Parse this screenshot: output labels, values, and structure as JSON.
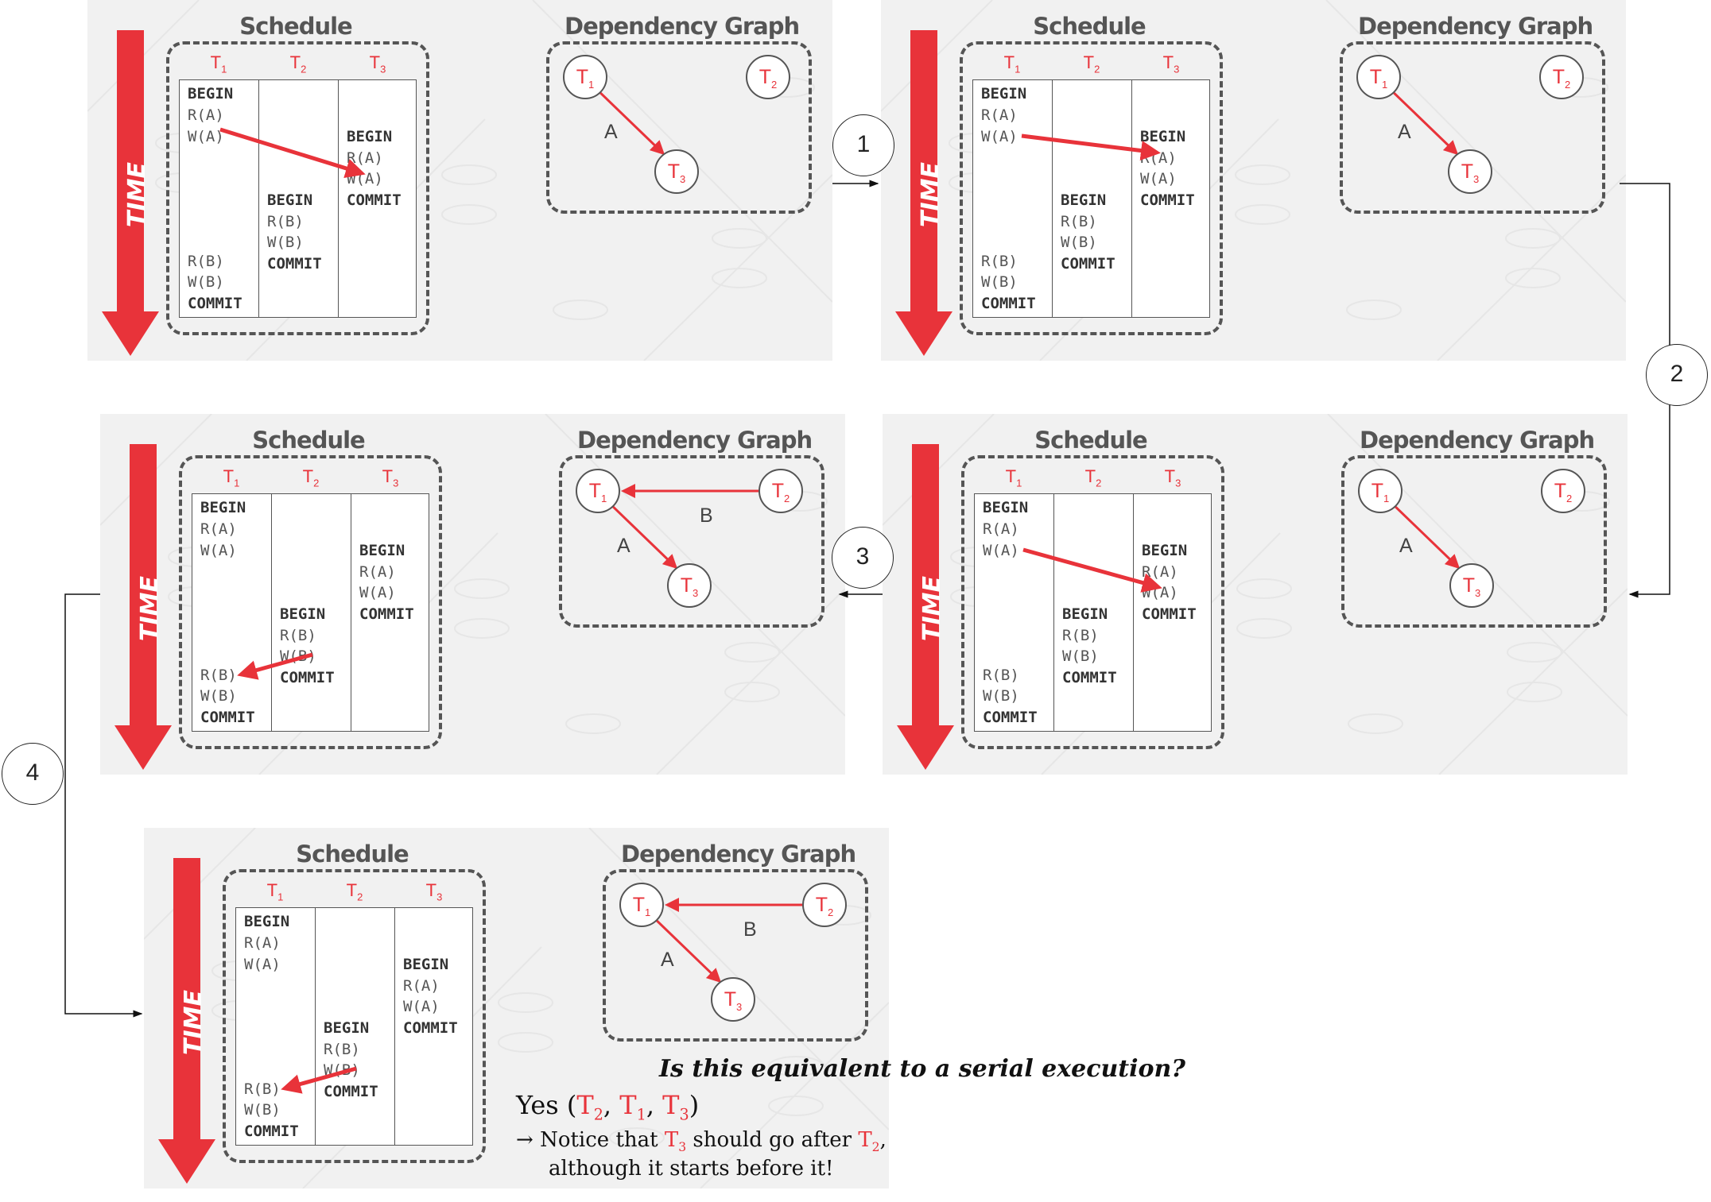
{
  "panels": [
    {
      "schedule_title": "Schedule",
      "graph_title": "Dependency Graph",
      "time_label": "TIME",
      "edges": [
        [
          "A",
          "t1-t3"
        ]
      ]
    },
    {
      "schedule_title": "Schedule",
      "graph_title": "Dependency Graph",
      "time_label": "TIME",
      "edges": [
        [
          "A",
          "t1-t3"
        ]
      ]
    },
    {
      "schedule_title": "Schedule",
      "graph_title": "Dependency Graph",
      "time_label": "TIME",
      "edges": [
        [
          "A",
          "t1-t3"
        ],
        [
          "B",
          "t2-t1"
        ]
      ]
    },
    {
      "schedule_title": "Schedule",
      "graph_title": "Dependency Graph",
      "time_label": "TIME",
      "edges": [
        [
          "A",
          "t1-t3"
        ]
      ]
    },
    {
      "schedule_title": "Schedule",
      "graph_title": "Dependency Graph",
      "time_label": "TIME",
      "edges": [
        [
          "A",
          "t1-t3"
        ],
        [
          "B",
          "t2-t1"
        ]
      ]
    }
  ],
  "transactions": {
    "t": "T",
    "s1": "1",
    "s2": "2",
    "s3": "3"
  },
  "schedule": {
    "begin": "BEGIN",
    "commit": "COMMIT",
    "ra": "R(A)",
    "wa": "W(A)",
    "rb": "R(B)",
    "wb": "W(B)"
  },
  "edge_labels": {
    "a": "A",
    "b": "B"
  },
  "steps": [
    "1",
    "2",
    "3",
    "4"
  ],
  "conclusion": {
    "question": "Is this equivalent to a serial execution?",
    "yes": "Yes (",
    "comma": ", ",
    "close": ")",
    "arrow": "→",
    "notice_pre": "Notice that ",
    "notice_mid": " should go after ",
    "notice_end": ",",
    "line2": "although it starts before it!"
  },
  "colors": {
    "accent": "#e8333a",
    "panel_bg": "#f1f1f1",
    "border": "#555555"
  }
}
